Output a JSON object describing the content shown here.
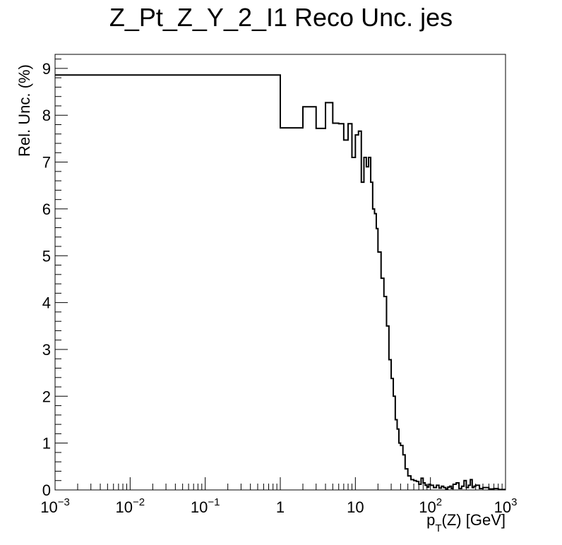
{
  "chart_data": {
    "type": "line",
    "title": "Z_Pt_Z_Y_2_I1 Reco Unc. jes",
    "xlabel_main": "p",
    "xlabel_sub": "T",
    "xlabel_rest": "(Z) [GeV]",
    "ylabel": "Rel. Unc. (%)",
    "x_scale": "log",
    "xlim": [
      0.001,
      1000
    ],
    "ylim": [
      0,
      9.3
    ],
    "grid": false,
    "legend": "none",
    "line_color": "#000000",
    "x_ticks": [
      {
        "value": 0.001,
        "base": "10",
        "exp": "−3"
      },
      {
        "value": 0.01,
        "base": "10",
        "exp": "−2"
      },
      {
        "value": 0.1,
        "base": "10",
        "exp": "−1"
      },
      {
        "value": 1,
        "base": "1",
        "exp": ""
      },
      {
        "value": 10,
        "base": "10",
        "exp": ""
      },
      {
        "value": 100,
        "base": "10",
        "exp": "2"
      },
      {
        "value": 1000,
        "base": "10",
        "exp": "3"
      }
    ],
    "y_ticks": [
      0,
      1,
      2,
      3,
      4,
      5,
      6,
      7,
      8,
      9
    ],
    "series": [
      {
        "edges": [
          0.001,
          1,
          2,
          3,
          4,
          5,
          6,
          7,
          8,
          9,
          10,
          11,
          12,
          13,
          14,
          15,
          16,
          17,
          18,
          19,
          20,
          22,
          24,
          26,
          28,
          30,
          32,
          34,
          36,
          38,
          40,
          43,
          46,
          50,
          55,
          60,
          65,
          70,
          75,
          80,
          85,
          90,
          95,
          100,
          110,
          120,
          130,
          140,
          150,
          160,
          170,
          180,
          190,
          200,
          220,
          240,
          260,
          280,
          300,
          320,
          340,
          360,
          380,
          400,
          450,
          500,
          600,
          700,
          800,
          1000
        ],
        "values": [
          8.86,
          7.73,
          8.18,
          7.72,
          8.27,
          7.83,
          7.82,
          7.47,
          7.82,
          7.1,
          7.58,
          7.66,
          6.57,
          7.1,
          6.9,
          7.1,
          6.57,
          6.0,
          5.9,
          5.58,
          5.08,
          4.52,
          4.13,
          3.5,
          2.78,
          2.38,
          2.0,
          1.5,
          1.3,
          1.0,
          0.95,
          0.75,
          0.45,
          0.3,
          0.22,
          0.2,
          0.18,
          0.12,
          0.25,
          0.15,
          0.1,
          0.06,
          0.12,
          0.1,
          0.05,
          0.1,
          0.04,
          0.08,
          0.05,
          0.02,
          0.06,
          0.08,
          0.03,
          0.12,
          0.15,
          0.03,
          0.08,
          0.2,
          0.05,
          0.1,
          0.22,
          0.05,
          0.08,
          0.1,
          0.03,
          0.05,
          0.02,
          0.03,
          0.01
        ]
      }
    ]
  }
}
